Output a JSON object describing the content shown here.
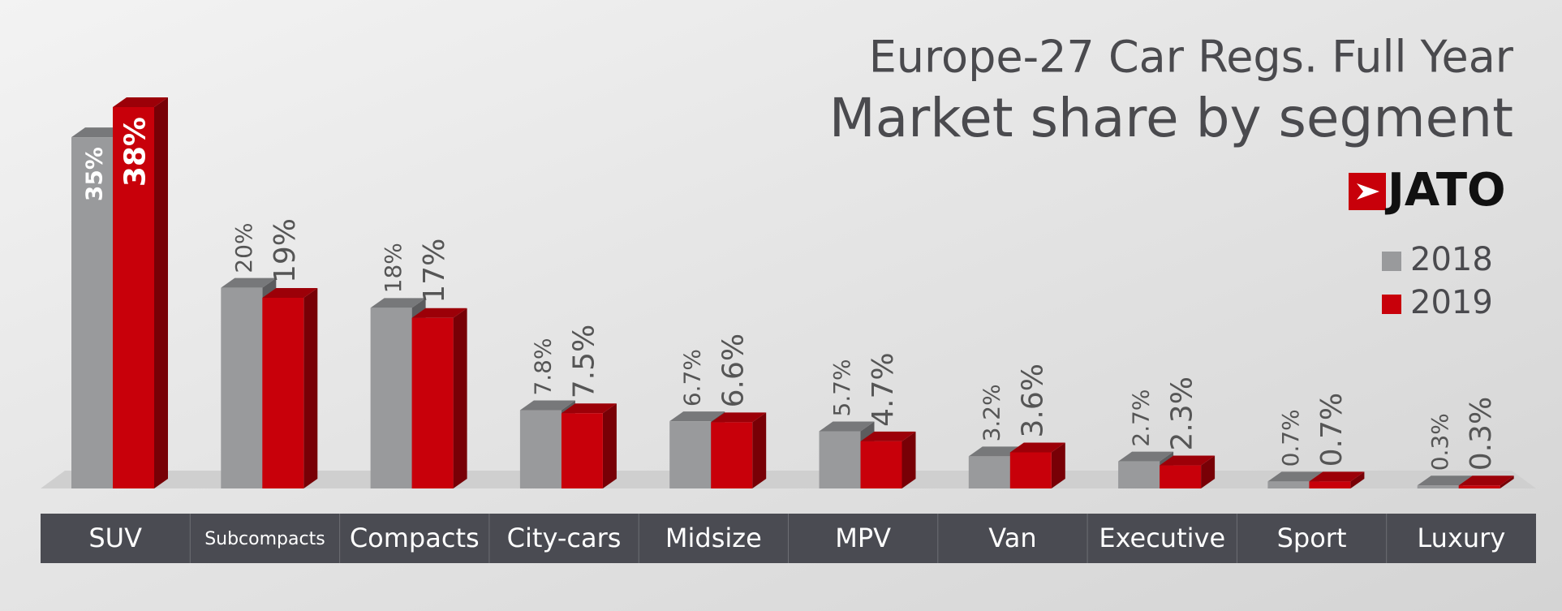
{
  "chart_data": {
    "type": "bar",
    "title": "Europe-27 Car Regs. Full Year",
    "subtitle": "Market share by segment",
    "logo": "JATO",
    "categories": [
      "SUV",
      "Subcompacts",
      "Compacts",
      "City-cars",
      "Midsize",
      "MPV",
      "Van",
      "Executive",
      "Sport",
      "Luxury"
    ],
    "series": [
      {
        "name": "2018",
        "color": "#999a9c",
        "values": [
          35,
          20,
          18,
          7.8,
          6.7,
          5.7,
          3.2,
          2.7,
          0.7,
          0.3
        ],
        "value_labels": [
          "35%",
          "20%",
          "18%",
          "7.8%",
          "6.7%",
          "5.7%",
          "3.2%",
          "2.7%",
          "0.7%",
          "0.3%"
        ]
      },
      {
        "name": "2019",
        "color": "#c8000a",
        "values": [
          38,
          19,
          17,
          7.5,
          6.6,
          4.7,
          3.6,
          2.3,
          0.7,
          0.3
        ],
        "value_labels": [
          "38%",
          "19%",
          "17%",
          "7.5%",
          "6.6%",
          "4.7%",
          "3.6%",
          "2.3%",
          "0.7%",
          "0.3%"
        ]
      }
    ]
  }
}
